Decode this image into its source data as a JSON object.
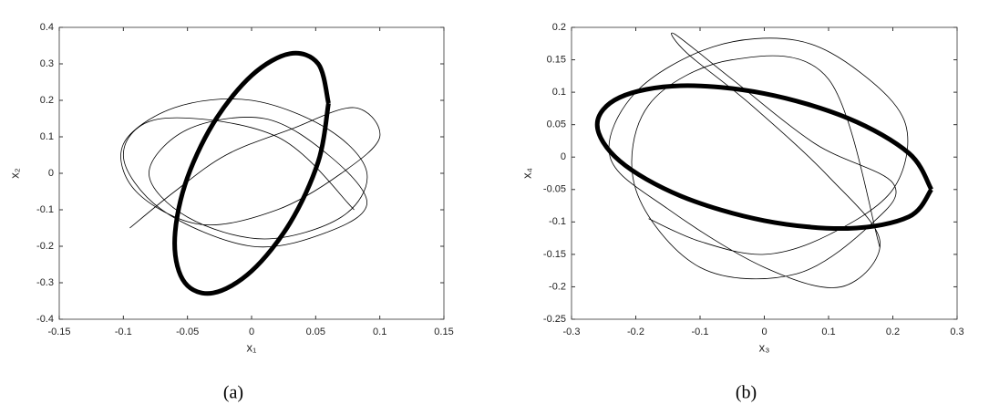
{
  "chart_data": [
    {
      "type": "line",
      "caption": "(a)",
      "xlabel": "x₁",
      "ylabel": "x₂",
      "xlim": [
        -0.15,
        0.15
      ],
      "xticks": [
        -0.15,
        -0.1,
        -0.05,
        0,
        0.05,
        0.1,
        0.15
      ],
      "ylim": [
        -0.4,
        0.4
      ],
      "yticks": [
        -0.4,
        -0.3,
        -0.2,
        -0.1,
        0,
        0.1,
        0.2,
        0.3,
        0.4
      ],
      "grid": false,
      "series": [
        {
          "color": "#000000",
          "line_width": 0.8,
          "x": [
            -0.095,
            -0.06,
            -0.02,
            0.03,
            0.08,
            0.1,
            0.07,
            0.02,
            -0.04,
            -0.09,
            -0.1,
            -0.06,
            0,
            0.06,
            0.09,
            0.07,
            0.01,
            -0.05,
            -0.08,
            -0.05,
            0.01,
            0.06,
            0.09,
            0.06,
            0,
            -0.07,
            -0.1,
            -0.07,
            0.02,
            0.08
          ],
          "values": [
            -0.15,
            -0.05,
            0.05,
            0.12,
            0.18,
            0.1,
            0,
            -0.1,
            -0.14,
            -0.05,
            0.08,
            0.18,
            0.2,
            0.12,
            0,
            -0.12,
            -0.18,
            -0.12,
            0,
            0.12,
            0.15,
            0.05,
            -0.08,
            -0.16,
            -0.2,
            -0.1,
            0.05,
            0.15,
            0.1,
            -0.1
          ]
        },
        {
          "color": "#000000",
          "line_width": 5,
          "x": [
            0.06,
            0.052,
            0.03,
            0,
            -0.03,
            -0.052,
            -0.06,
            -0.052,
            -0.03,
            0,
            0.03,
            0.052,
            0.06
          ],
          "values": [
            0.192,
            0.3,
            0.328,
            0.268,
            0.136,
            -0.032,
            -0.192,
            -0.3,
            -0.328,
            -0.268,
            -0.136,
            0.032,
            0.192
          ]
        }
      ]
    },
    {
      "type": "line",
      "caption": "(b)",
      "xlabel": "x₃",
      "ylabel": "x₄",
      "xlim": [
        -0.3,
        0.3
      ],
      "xticks": [
        -0.3,
        -0.2,
        -0.1,
        0,
        0.1,
        0.2,
        0.3
      ],
      "ylim": [
        -0.25,
        0.2
      ],
      "yticks": [
        -0.25,
        -0.2,
        -0.15,
        -0.1,
        -0.05,
        0,
        0.05,
        0.1,
        0.15,
        0.2
      ],
      "grid": false,
      "series": [
        {
          "color": "#000000",
          "line_width": 0.8,
          "x": [
            -0.18,
            -0.1,
            0,
            0.1,
            0.2,
            0.22,
            0.15,
            0.05,
            -0.08,
            -0.2,
            -0.24,
            -0.15,
            0,
            0.12,
            0.18,
            0.1,
            -0.02,
            -0.12,
            -0.14,
            -0.05,
            0.08,
            0.2,
            0.17,
            0.05,
            -0.1,
            -0.2,
            -0.18,
            -0.05,
            0.1,
            0.18
          ],
          "values": [
            -0.095,
            -0.13,
            -0.15,
            -0.12,
            -0.05,
            0.05,
            0.13,
            0.18,
            0.17,
            0.1,
            0,
            -0.08,
            -0.17,
            -0.2,
            -0.13,
            -0.03,
            0.08,
            0.16,
            0.19,
            0.12,
            0.02,
            -0.04,
            -0.1,
            -0.18,
            -0.17,
            -0.05,
            0.08,
            0.15,
            0.12,
            -0.14
          ]
        },
        {
          "color": "#000000",
          "line_width": 5,
          "x": [
            0.26,
            0.225,
            0.13,
            0,
            -0.13,
            -0.225,
            -0.26,
            -0.225,
            -0.13,
            0,
            0.13,
            0.225,
            0.26
          ],
          "values": [
            -0.05,
            0.006,
            0.06,
            0.098,
            0.11,
            0.092,
            0.05,
            -0.006,
            -0.06,
            -0.098,
            -0.11,
            -0.092,
            -0.05
          ]
        }
      ]
    }
  ]
}
